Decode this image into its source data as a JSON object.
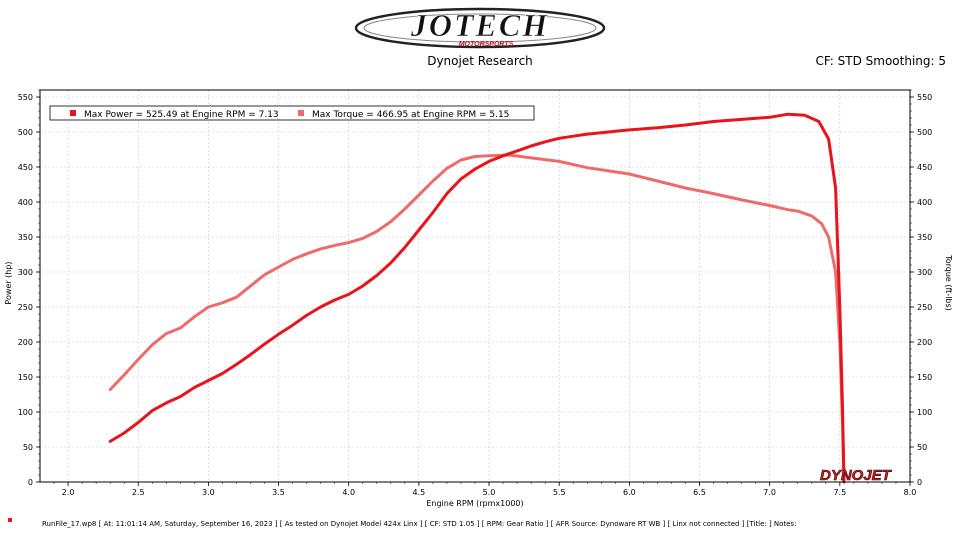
{
  "header": {
    "logo_text": "JOTECH",
    "logo_subtext": "MOTORSPORTS",
    "subtitle": "Dynojet Research",
    "cf_info": "CF: STD Smoothing: 5"
  },
  "footer": {
    "text": "RunFile_17.wp8 [ At: 11:01:14 AM, Saturday, September 16, 2023 ] [ As tested on Dynojet Model 424x Linx ] [ CF: STD 1.05 ] [ RPM: Gear Ratio ] [ AFR Source: Dynoware RT WB ] [ Linx not connected ] [Title: ]   Notes:"
  },
  "brand": "DYNOJET",
  "colors": {
    "power": "#e8131b",
    "torque": "#ef6b6b",
    "grid": "#c8c8c8"
  },
  "chart_data": {
    "type": "line",
    "xlabel": "Engine RPM (rpmx1000)",
    "ylabel": "Power (hp)",
    "y2label": "Torque (ft-lbs)",
    "xlim": [
      1.8,
      8.0
    ],
    "ylim": [
      0,
      560
    ],
    "x_ticks": [
      "2.0",
      "2.5",
      "3.0",
      "3.5",
      "4.0",
      "4.5",
      "5.0",
      "5.5",
      "6.0",
      "6.5",
      "7.0",
      "7.5",
      "8.0"
    ],
    "y_ticks": [
      "0",
      "50",
      "100",
      "150",
      "200",
      "250",
      "300",
      "350",
      "400",
      "450",
      "500",
      "550"
    ],
    "grid": true,
    "legend_position": "top-left",
    "series": [
      {
        "name": "Max Power = 525.49 at Engine RPM = 7.13",
        "color": "#e8131b",
        "points": [
          [
            2.3,
            58
          ],
          [
            2.4,
            70
          ],
          [
            2.5,
            85
          ],
          [
            2.6,
            102
          ],
          [
            2.7,
            113
          ],
          [
            2.8,
            122
          ],
          [
            2.9,
            135
          ],
          [
            3.0,
            145
          ],
          [
            3.1,
            155
          ],
          [
            3.2,
            168
          ],
          [
            3.3,
            182
          ],
          [
            3.4,
            197
          ],
          [
            3.5,
            211
          ],
          [
            3.6,
            224
          ],
          [
            3.7,
            238
          ],
          [
            3.8,
            250
          ],
          [
            3.9,
            260
          ],
          [
            4.0,
            268
          ],
          [
            4.1,
            280
          ],
          [
            4.2,
            295
          ],
          [
            4.3,
            313
          ],
          [
            4.4,
            335
          ],
          [
            4.5,
            360
          ],
          [
            4.6,
            385
          ],
          [
            4.7,
            412
          ],
          [
            4.8,
            433
          ],
          [
            4.9,
            447
          ],
          [
            5.0,
            458
          ],
          [
            5.1,
            466
          ],
          [
            5.2,
            473
          ],
          [
            5.3,
            480
          ],
          [
            5.4,
            486
          ],
          [
            5.5,
            491
          ],
          [
            5.6,
            494
          ],
          [
            5.7,
            497
          ],
          [
            5.8,
            499
          ],
          [
            5.9,
            501
          ],
          [
            6.0,
            503
          ],
          [
            6.2,
            506
          ],
          [
            6.4,
            510
          ],
          [
            6.6,
            515
          ],
          [
            6.8,
            518
          ],
          [
            7.0,
            521
          ],
          [
            7.13,
            525.49
          ],
          [
            7.25,
            524
          ],
          [
            7.35,
            515
          ],
          [
            7.42,
            490
          ],
          [
            7.47,
            420
          ],
          [
            7.5,
            250
          ],
          [
            7.52,
            100
          ],
          [
            7.53,
            0
          ]
        ]
      },
      {
        "name": "Max Torque = 466.95 at Engine RPM = 5.15",
        "color": "#ef6b6b",
        "points": [
          [
            2.3,
            132
          ],
          [
            2.4,
            153
          ],
          [
            2.5,
            175
          ],
          [
            2.6,
            196
          ],
          [
            2.7,
            212
          ],
          [
            2.8,
            220
          ],
          [
            2.9,
            236
          ],
          [
            3.0,
            250
          ],
          [
            3.1,
            256
          ],
          [
            3.2,
            264
          ],
          [
            3.3,
            280
          ],
          [
            3.4,
            296
          ],
          [
            3.5,
            307
          ],
          [
            3.6,
            318
          ],
          [
            3.7,
            326
          ],
          [
            3.8,
            333
          ],
          [
            3.9,
            338
          ],
          [
            4.0,
            342
          ],
          [
            4.1,
            348
          ],
          [
            4.2,
            358
          ],
          [
            4.3,
            372
          ],
          [
            4.4,
            390
          ],
          [
            4.5,
            410
          ],
          [
            4.6,
            430
          ],
          [
            4.7,
            448
          ],
          [
            4.8,
            460
          ],
          [
            4.9,
            465
          ],
          [
            5.0,
            466
          ],
          [
            5.15,
            466.95
          ],
          [
            5.3,
            463
          ],
          [
            5.5,
            458
          ],
          [
            5.7,
            449
          ],
          [
            5.9,
            443
          ],
          [
            6.0,
            440
          ],
          [
            6.2,
            430
          ],
          [
            6.4,
            420
          ],
          [
            6.6,
            412
          ],
          [
            6.8,
            403
          ],
          [
            7.0,
            395
          ],
          [
            7.13,
            389
          ],
          [
            7.2,
            387
          ],
          [
            7.3,
            380
          ],
          [
            7.37,
            369
          ],
          [
            7.42,
            350
          ],
          [
            7.47,
            300
          ],
          [
            7.5,
            200
          ],
          [
            7.52,
            80
          ],
          [
            7.53,
            0
          ]
        ]
      }
    ]
  }
}
